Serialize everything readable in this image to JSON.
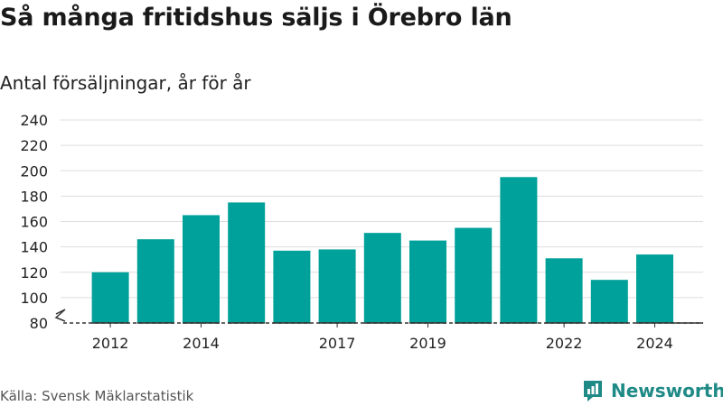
{
  "header": {
    "title": "Så många fritidshus säljs i Örebro län",
    "subtitle": "Antal försäljningar, år för år"
  },
  "footer": {
    "source": "Källa: Svensk Mäklarstatistik",
    "brand": "Newsworthy"
  },
  "colors": {
    "bar": "#00a19a",
    "grid": "#dddddd",
    "axis": "#333333",
    "brand": "#1f8a86"
  },
  "chart_data": {
    "type": "bar",
    "categories": [
      "2012",
      "2013",
      "2014",
      "2015",
      "2016",
      "2017",
      "2018",
      "2019",
      "2020",
      "2021",
      "2022",
      "2023",
      "2024"
    ],
    "values": [
      120,
      146,
      165,
      175,
      137,
      138,
      151,
      145,
      155,
      195,
      131,
      114,
      134
    ],
    "x_tick_labels": [
      "2012",
      "2014",
      "2017",
      "2019",
      "2022",
      "2024"
    ],
    "y_ticks": [
      80,
      100,
      120,
      140,
      160,
      180,
      200,
      220,
      240
    ],
    "ylim": [
      80,
      240
    ],
    "axis_break": true,
    "grid": true,
    "xlabel": "",
    "ylabel": ""
  }
}
